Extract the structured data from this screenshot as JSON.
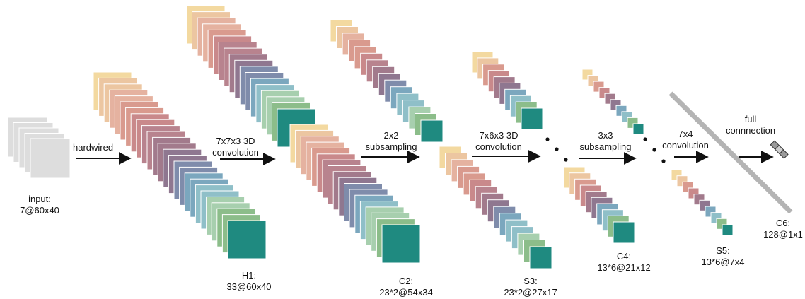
{
  "colors": {
    "stack": [
      "#f3d9a0",
      "#ecc6a1",
      "#e5b2a0",
      "#d99a8e",
      "#c9898b",
      "#b8838e",
      "#a27a8c",
      "#8f7790",
      "#7f8cab",
      "#7ba7be",
      "#8fbfc8",
      "#a7cfae",
      "#8cbd8a",
      "#1f8a80"
    ],
    "input_frame": "#dddddd",
    "input_edge": "#bbbbbb",
    "arrow": "#111111",
    "c6_bar": "#b4b4b4"
  },
  "layers": {
    "input": {
      "line1": "input:",
      "line2": "7@60x40"
    },
    "h1": {
      "line1": "H1:",
      "line2": "33@60x40"
    },
    "c2": {
      "line1": "C2:",
      "line2": "23*2@54x34"
    },
    "s3": {
      "line1": "S3:",
      "line2": "23*2@27x17"
    },
    "c4": {
      "line1": "C4:",
      "line2": "13*6@21x12"
    },
    "s5": {
      "line1": "S5:",
      "line2": "13*6@7x4"
    },
    "c6": {
      "line1": "C6:",
      "line2": "128@1x1"
    }
  },
  "operations": {
    "hardwired": {
      "line1": "hardwired"
    },
    "conv1": {
      "line1": "7x7x3 3D",
      "line2": "convolution"
    },
    "sub1": {
      "line1": "2x2",
      "line2": "subsampling"
    },
    "conv2": {
      "line1": "7x6x3 3D",
      "line2": "convolution"
    },
    "sub2": {
      "line1": "3x3",
      "line2": "subsampling"
    },
    "conv3": {
      "line1": "7x4",
      "line2": "convolution"
    },
    "full": {
      "line1": "full",
      "line2": "connnection"
    }
  }
}
